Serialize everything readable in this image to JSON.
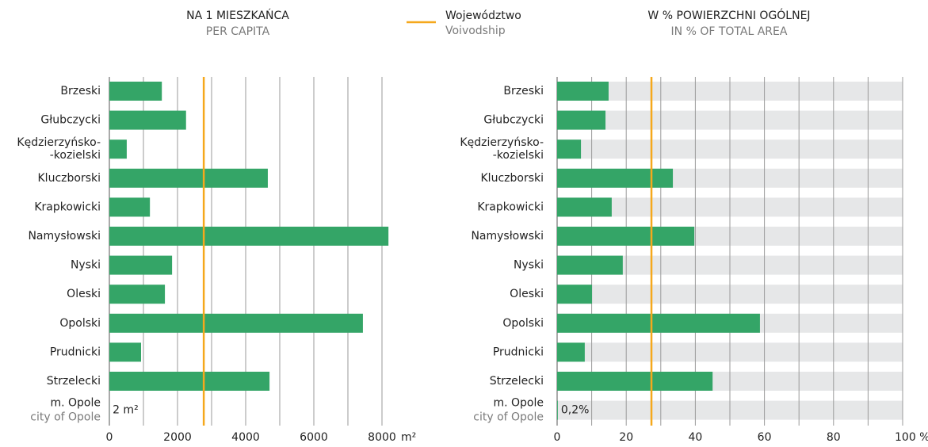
{
  "legend": {
    "label": "Województwo",
    "sublabel": "Voivodship",
    "color": "#f5a81c"
  },
  "chart_data": [
    {
      "type": "hbar",
      "title": "NA 1 MIESZKAŃCA",
      "subtitle": "PER CAPITA",
      "categories": [
        "Brzeski",
        "Głubczycki",
        "Kędzierzyńsko-\n-kozielski",
        "Kluczborski",
        "Krapkowicki",
        "Namysłowski",
        "Nyski",
        "Oleski",
        "Opolski",
        "Prudnicki",
        "Strzelecki",
        "m. Opole"
      ],
      "category_sublabels": [
        null,
        null,
        null,
        null,
        null,
        null,
        null,
        null,
        null,
        null,
        null,
        "city of Opole"
      ],
      "values": [
        1540,
        2250,
        510,
        4650,
        1190,
        8190,
        1840,
        1630,
        7440,
        930,
        4700,
        2
      ],
      "value_labels": [
        null,
        null,
        null,
        null,
        null,
        null,
        null,
        null,
        null,
        null,
        null,
        "2 m²"
      ],
      "color": "#34a567",
      "reference_line": 2770,
      "xlim": [
        0,
        8000
      ],
      "xticks": [
        0,
        2000,
        4000,
        6000,
        8000
      ],
      "gridlines": [
        0,
        1000,
        2000,
        3000,
        4000,
        5000,
        6000,
        7000,
        8000
      ],
      "x_unit": "m²",
      "track": false
    },
    {
      "type": "hbar",
      "title": "W % POWIERZCHNI OGÓLNEJ",
      "subtitle": "IN % OF TOTAL AREA",
      "categories": [
        "Brzeski",
        "Głubczycki",
        "Kędzierzyńsko-\n-kozielski",
        "Kluczborski",
        "Krapkowicki",
        "Namysłowski",
        "Nyski",
        "Oleski",
        "Opolski",
        "Prudnicki",
        "Strzelecki",
        "m. Opole"
      ],
      "category_sublabels": [
        null,
        null,
        null,
        null,
        null,
        null,
        null,
        null,
        null,
        null,
        null,
        "city of Opole"
      ],
      "values": [
        14.9,
        14.0,
        6.9,
        33.5,
        15.8,
        39.7,
        19.0,
        10.1,
        58.7,
        8.0,
        45.0,
        0.2
      ],
      "value_labels": [
        null,
        null,
        null,
        null,
        null,
        null,
        null,
        null,
        null,
        null,
        null,
        "0,2%"
      ],
      "color": "#34a567",
      "reference_line": 27.3,
      "xlim": [
        0,
        100
      ],
      "xticks": [
        0,
        20,
        40,
        60,
        80,
        {
          "value": 100,
          "label": "100 %"
        }
      ],
      "gridlines": [
        0,
        10,
        20,
        30,
        40,
        50,
        60,
        70,
        80,
        90,
        100
      ],
      "track": true
    }
  ]
}
